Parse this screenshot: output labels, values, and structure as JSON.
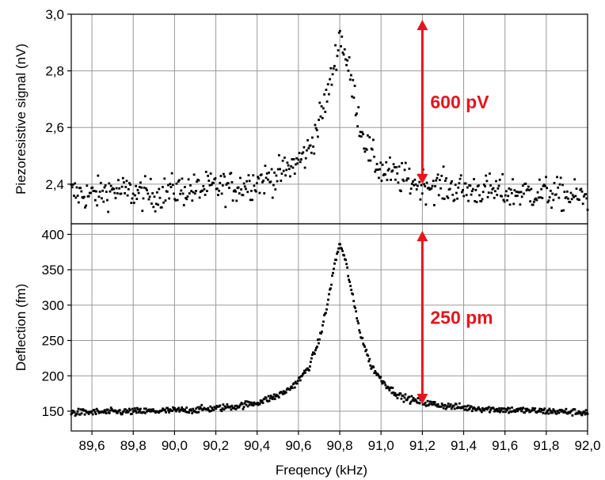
{
  "chart_data": [
    {
      "type": "scatter",
      "title": "",
      "xlabel": "",
      "ylabel": "Piezoresistive signal (nV)",
      "xlim": [
        89.5,
        92.0
      ],
      "ylim": [
        2.26,
        3.0
      ],
      "x_ticks": [
        "89,6",
        "89,8",
        "90,0",
        "90,2",
        "90,4",
        "90,6",
        "90,8",
        "91,0",
        "91,2",
        "91,4",
        "91,6",
        "91,8",
        "92,0"
      ],
      "y_ticks": [
        {
          "value": 2.4,
          "label": "2,4"
        },
        {
          "value": 2.6,
          "label": "2,6"
        },
        {
          "value": 2.8,
          "label": "2,8"
        },
        {
          "value": 3.0,
          "label": "3,0"
        }
      ],
      "grid": true,
      "series_color": "#000000",
      "resonance_peak": {
        "x": 90.8,
        "y": 2.95
      },
      "baseline": 2.37,
      "noise": 0.04,
      "points": [
        [
          89.5,
          2.37
        ],
        [
          89.6,
          2.36
        ],
        [
          89.7,
          2.38
        ],
        [
          89.8,
          2.37
        ],
        [
          89.9,
          2.36
        ],
        [
          90.0,
          2.38
        ],
        [
          90.1,
          2.38
        ],
        [
          90.2,
          2.39
        ],
        [
          90.3,
          2.39
        ],
        [
          90.4,
          2.41
        ],
        [
          90.5,
          2.43
        ],
        [
          90.6,
          2.48
        ],
        [
          90.65,
          2.52
        ],
        [
          90.7,
          2.62
        ],
        [
          90.75,
          2.74
        ],
        [
          90.78,
          2.85
        ],
        [
          90.8,
          2.93
        ],
        [
          90.82,
          2.88
        ],
        [
          90.85,
          2.78
        ],
        [
          90.88,
          2.68
        ],
        [
          90.9,
          2.6
        ],
        [
          90.95,
          2.5
        ],
        [
          91.0,
          2.45
        ],
        [
          91.1,
          2.42
        ],
        [
          91.2,
          2.4
        ],
        [
          91.3,
          2.39
        ],
        [
          91.4,
          2.38
        ],
        [
          91.5,
          2.38
        ],
        [
          91.6,
          2.37
        ],
        [
          91.7,
          2.37
        ],
        [
          91.8,
          2.37
        ],
        [
          91.9,
          2.36
        ],
        [
          92.0,
          2.35
        ]
      ],
      "annotation": {
        "text": "600 pV",
        "x": 91.2,
        "y_from": 2.4,
        "y_to": 2.98,
        "color": "#e8141c"
      }
    },
    {
      "type": "scatter",
      "title": "",
      "xlabel": "Freqency (kHz)",
      "ylabel": "Deflection (fm)",
      "xlim": [
        89.5,
        92.0
      ],
      "ylim": [
        122,
        415
      ],
      "x_ticks": [
        "89,6",
        "89,8",
        "90,0",
        "90,2",
        "90,4",
        "90,6",
        "90,8",
        "91,0",
        "91,2",
        "91,4",
        "91,6",
        "91,8",
        "92,0"
      ],
      "y_ticks": [
        {
          "value": 150,
          "label": "150"
        },
        {
          "value": 200,
          "label": "200"
        },
        {
          "value": 250,
          "label": "250"
        },
        {
          "value": 300,
          "label": "300"
        },
        {
          "value": 350,
          "label": "350"
        },
        {
          "value": 400,
          "label": "400"
        }
      ],
      "grid": true,
      "series_color": "#000000",
      "resonance_peak": {
        "x": 90.8,
        "y": 390
      },
      "baseline": 145,
      "noise": 2,
      "points": [
        [
          89.5,
          148
        ],
        [
          89.7,
          149
        ],
        [
          89.9,
          150
        ],
        [
          90.0,
          151
        ],
        [
          90.1,
          152
        ],
        [
          90.2,
          154
        ],
        [
          90.3,
          157
        ],
        [
          90.4,
          162
        ],
        [
          90.5,
          172
        ],
        [
          90.55,
          180
        ],
        [
          90.6,
          193
        ],
        [
          90.65,
          212
        ],
        [
          90.7,
          250
        ],
        [
          90.74,
          300
        ],
        [
          90.77,
          350
        ],
        [
          90.8,
          388
        ],
        [
          90.83,
          360
        ],
        [
          90.86,
          315
        ],
        [
          90.9,
          260
        ],
        [
          90.95,
          215
        ],
        [
          91.0,
          195
        ],
        [
          91.05,
          180
        ],
        [
          91.1,
          170
        ],
        [
          91.2,
          162
        ],
        [
          91.3,
          158
        ],
        [
          91.4,
          155
        ],
        [
          91.6,
          152
        ],
        [
          91.8,
          150
        ],
        [
          92.0,
          148
        ]
      ],
      "annotation": {
        "text": "250 pm",
        "x": 91.2,
        "y_from": 160,
        "y_to": 405,
        "color": "#e8141c"
      }
    }
  ]
}
